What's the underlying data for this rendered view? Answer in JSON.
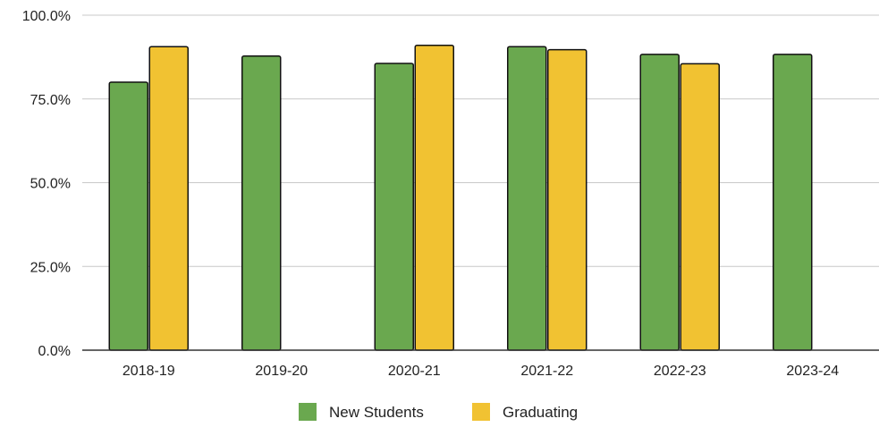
{
  "chart_data": {
    "type": "bar",
    "categories": [
      "2018-19",
      "2019-20",
      "2020-21",
      "2021-22",
      "2022-23",
      "2023-24"
    ],
    "series": [
      {
        "name": "New Students",
        "color": "#6aa84f",
        "values": [
          80.0,
          87.8,
          85.6,
          90.6,
          88.3,
          88.3
        ]
      },
      {
        "name": "Graduating",
        "color": "#f1c232",
        "values": [
          90.6,
          null,
          91.0,
          89.7,
          85.5,
          null
        ]
      }
    ],
    "ylim": [
      0,
      100
    ],
    "yticks": [
      0,
      25,
      50,
      75,
      100
    ],
    "ytick_labels": [
      "0.0%",
      "25.0%",
      "50.0%",
      "75.0%",
      "100.0%"
    ],
    "title": "",
    "xlabel": "",
    "ylabel": "",
    "grid": true,
    "legend_position": "bottom"
  }
}
